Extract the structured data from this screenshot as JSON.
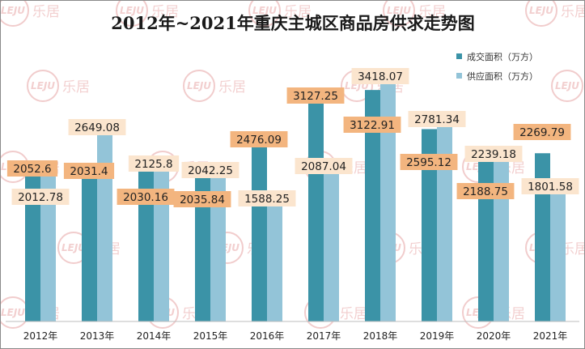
{
  "chart_data": {
    "type": "bar",
    "title": "2012年~2021年重庆主城区商品房供求走势图",
    "categories": [
      "2012年",
      "2013年",
      "2014年",
      "2015年",
      "2016年",
      "2017年",
      "2018年",
      "2019年",
      "2020年",
      "2021年"
    ],
    "series": [
      {
        "name": "成交面积（万方）",
        "color": "#3b93a7",
        "values": [
          2052.6,
          2031.4,
          2030.16,
          2035.84,
          2476.09,
          3127.25,
          3122.91,
          2595.12,
          2188.75,
          2269.79
        ]
      },
      {
        "name": "供应面积（万方）",
        "color": "#93c4d8",
        "values": [
          2012.78,
          2649.08,
          2125.8,
          2042.25,
          1588.25,
          2087.04,
          3418.07,
          2781.34,
          2239.18,
          1801.58
        ]
      }
    ],
    "ylim": [
      0,
      3780
    ],
    "grid": false,
    "legend": "top-right",
    "xlabel": "",
    "ylabel": ""
  },
  "watermark": {
    "logo": "LEJU",
    "text": "乐居"
  },
  "colors": {
    "label_orange": "#f3b57f",
    "label_cream": "#fbe5ce"
  }
}
